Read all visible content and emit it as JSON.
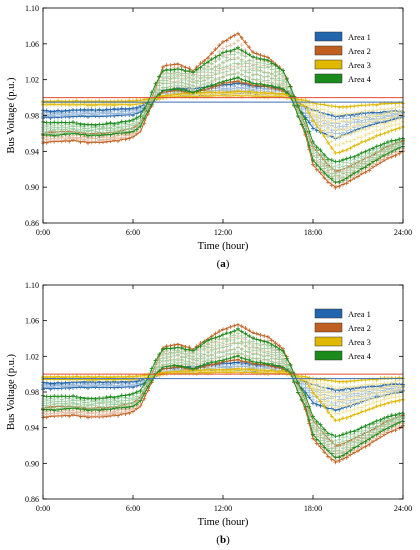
{
  "chart_data": [
    {
      "type": "line",
      "caption_letter": "a",
      "xlabel": "Time (hour)",
      "ylabel": "Bus Voltage (p.u.)",
      "xlim": [
        0,
        24
      ],
      "ylim": [
        0.86,
        1.1
      ],
      "x_ticks": [
        "0:00",
        "6:00",
        "12:00",
        "18:00",
        "24:00"
      ],
      "y_ticks": [
        "0.86",
        "0.90",
        "0.94",
        "0.98",
        "1.02",
        "1.06",
        "1.10"
      ],
      "legend_placement": "top-right",
      "reference_lines": [
        1.0,
        0.995
      ],
      "series": [
        {
          "name": "Area 1",
          "color": "#2166ac",
          "x": [
            0,
            1,
            2,
            3,
            4,
            5,
            6,
            6.5,
            7,
            7.5,
            8,
            9,
            10,
            11,
            12,
            13,
            14,
            15,
            16,
            16.5,
            17,
            17.5,
            18,
            19,
            19.5,
            20,
            21,
            22,
            23,
            24
          ],
          "upper": [
            0.985,
            0.985,
            0.986,
            0.986,
            0.986,
            0.987,
            0.988,
            0.99,
            0.995,
            1.0,
            1.008,
            1.01,
            1.01,
            1.012,
            1.014,
            1.016,
            1.013,
            1.012,
            1.01,
            1.005,
            0.995,
            0.99,
            0.986,
            0.981,
            0.979,
            0.98,
            0.982,
            0.983,
            0.984,
            0.985
          ],
          "lower": [
            0.978,
            0.978,
            0.979,
            0.979,
            0.979,
            0.98,
            0.981,
            0.984,
            0.99,
            0.997,
            1.001,
            1.002,
            1.002,
            1.003,
            1.004,
            1.005,
            1.004,
            1.003,
            1.002,
            0.999,
            0.987,
            0.978,
            0.966,
            0.958,
            0.955,
            0.958,
            0.965,
            0.97,
            0.974,
            0.978
          ]
        },
        {
          "name": "Area 2",
          "color": "#c06020",
          "x": [
            0,
            1,
            2,
            3,
            4,
            5,
            6,
            6.5,
            7,
            7.5,
            8,
            9,
            10,
            11,
            12,
            13,
            14,
            15,
            16,
            16.5,
            17,
            17.5,
            18,
            19,
            19.5,
            20,
            21,
            22,
            23,
            24
          ],
          "upper": [
            0.96,
            0.962,
            0.962,
            0.96,
            0.96,
            0.962,
            0.966,
            0.972,
            0.99,
            1.01,
            1.035,
            1.038,
            1.03,
            1.045,
            1.062,
            1.072,
            1.05,
            1.045,
            1.03,
            1.012,
            0.99,
            0.968,
            0.945,
            0.925,
            0.918,
            0.92,
            0.928,
            0.936,
            0.946,
            0.952
          ],
          "lower": [
            0.95,
            0.951,
            0.952,
            0.95,
            0.95,
            0.952,
            0.956,
            0.962,
            0.982,
            1.0,
            1.006,
            1.008,
            1.005,
            1.01,
            1.016,
            1.018,
            1.014,
            1.012,
            1.008,
            1.002,
            0.98,
            0.958,
            0.925,
            0.906,
            0.9,
            0.903,
            0.912,
            0.922,
            0.932,
            0.94
          ]
        },
        {
          "name": "Area 3",
          "color": "#e0b800",
          "x": [
            0,
            1,
            2,
            3,
            4,
            5,
            6,
            6.5,
            7,
            7.5,
            8,
            9,
            10,
            11,
            12,
            13,
            14,
            15,
            16,
            16.5,
            17,
            17.5,
            18,
            19,
            19.5,
            20,
            21,
            22,
            23,
            24
          ],
          "upper": [
            0.996,
            0.996,
            0.996,
            0.996,
            0.996,
            0.996,
            0.996,
            0.997,
            0.998,
            1.0,
            1.002,
            1.004,
            1.005,
            1.006,
            1.006,
            1.007,
            1.006,
            1.005,
            1.004,
            1.001,
            0.998,
            0.997,
            0.994,
            0.991,
            0.99,
            0.99,
            0.991,
            0.992,
            0.993,
            0.994
          ],
          "lower": [
            0.992,
            0.992,
            0.992,
            0.992,
            0.992,
            0.992,
            0.992,
            0.993,
            0.995,
            0.998,
            1.0,
            1.001,
            1.001,
            1.002,
            1.002,
            1.002,
            1.002,
            1.001,
            1.001,
            0.999,
            0.994,
            0.99,
            0.975,
            0.95,
            0.938,
            0.94,
            0.948,
            0.955,
            0.962,
            0.968
          ]
        },
        {
          "name": "Area 4",
          "color": "#1a8a1a",
          "x": [
            0,
            1,
            2,
            3,
            4,
            5,
            6,
            6.5,
            7,
            7.5,
            8,
            9,
            10,
            11,
            12,
            13,
            14,
            15,
            16,
            16.5,
            17,
            17.5,
            18,
            19,
            19.5,
            20,
            21,
            22,
            23,
            24
          ],
          "upper": [
            0.972,
            0.972,
            0.972,
            0.97,
            0.97,
            0.972,
            0.975,
            0.98,
            0.995,
            1.015,
            1.03,
            1.032,
            1.028,
            1.04,
            1.05,
            1.055,
            1.045,
            1.042,
            1.03,
            1.012,
            0.99,
            0.975,
            0.95,
            0.932,
            0.928,
            0.93,
            0.936,
            0.944,
            0.95,
            0.955
          ],
          "lower": [
            0.958,
            0.958,
            0.96,
            0.958,
            0.958,
            0.96,
            0.962,
            0.968,
            0.985,
            1.0,
            1.008,
            1.01,
            1.006,
            1.012,
            1.018,
            1.022,
            1.016,
            1.014,
            1.01,
            1.002,
            0.98,
            0.962,
            0.93,
            0.912,
            0.905,
            0.908,
            0.918,
            0.928,
            0.938,
            0.946
          ]
        }
      ]
    },
    {
      "type": "line",
      "caption_letter": "b",
      "xlabel": "Time (hour)",
      "ylabel": "Bus Voltage (p.u.)",
      "xlim": [
        0,
        24
      ],
      "ylim": [
        0.86,
        1.1
      ],
      "x_ticks": [
        "0:00",
        "6:00",
        "12:00",
        "18:00",
        "24:00"
      ],
      "y_ticks": [
        "0.86",
        "0.90",
        "0.94",
        "0.98",
        "1.02",
        "1.06",
        "1.10"
      ],
      "legend_placement": "top-right",
      "reference_lines": [
        1.0,
        0.995
      ],
      "series": [
        {
          "name": "Area 1",
          "color": "#2166ac",
          "x": [
            0,
            1,
            2,
            3,
            4,
            5,
            6,
            6.5,
            7,
            7.5,
            8,
            9,
            10,
            11,
            12,
            13,
            14,
            15,
            16,
            16.5,
            17,
            17.5,
            18,
            19,
            19.5,
            20,
            21,
            22,
            23,
            24
          ],
          "upper": [
            0.99,
            0.99,
            0.991,
            0.991,
            0.991,
            0.991,
            0.992,
            0.993,
            0.996,
            1.0,
            1.006,
            1.008,
            1.008,
            1.01,
            1.012,
            1.013,
            1.011,
            1.01,
            1.008,
            1.004,
            0.996,
            0.992,
            0.988,
            0.984,
            0.982,
            0.983,
            0.985,
            0.986,
            0.988,
            0.989
          ],
          "lower": [
            0.984,
            0.984,
            0.985,
            0.985,
            0.985,
            0.985,
            0.986,
            0.988,
            0.992,
            0.997,
            1.001,
            1.002,
            1.002,
            1.003,
            1.004,
            1.004,
            1.003,
            1.003,
            1.002,
            0.999,
            0.988,
            0.98,
            0.968,
            0.962,
            0.96,
            0.962,
            0.968,
            0.973,
            0.977,
            0.98
          ]
        },
        {
          "name": "Area 2",
          "color": "#c06020",
          "x": [
            0,
            1,
            2,
            3,
            4,
            5,
            6,
            6.5,
            7,
            7.5,
            8,
            9,
            10,
            11,
            12,
            13,
            14,
            15,
            16,
            16.5,
            17,
            17.5,
            18,
            19,
            19.5,
            20,
            21,
            22,
            23,
            24
          ],
          "upper": [
            0.962,
            0.964,
            0.964,
            0.962,
            0.962,
            0.964,
            0.968,
            0.974,
            0.99,
            1.01,
            1.03,
            1.034,
            1.028,
            1.04,
            1.05,
            1.056,
            1.046,
            1.042,
            1.028,
            1.01,
            0.99,
            0.97,
            0.948,
            0.928,
            0.92,
            0.922,
            0.93,
            0.938,
            0.948,
            0.954
          ],
          "lower": [
            0.952,
            0.953,
            0.954,
            0.952,
            0.952,
            0.954,
            0.958,
            0.964,
            0.982,
            1.0,
            1.006,
            1.008,
            1.005,
            1.01,
            1.014,
            1.016,
            1.012,
            1.01,
            1.006,
            1.002,
            0.98,
            0.96,
            0.928,
            0.908,
            0.902,
            0.905,
            0.914,
            0.924,
            0.934,
            0.942
          ]
        },
        {
          "name": "Area 3",
          "color": "#e0b800",
          "x": [
            0,
            1,
            2,
            3,
            4,
            5,
            6,
            6.5,
            7,
            7.5,
            8,
            9,
            10,
            11,
            12,
            13,
            14,
            15,
            16,
            16.5,
            17,
            17.5,
            18,
            19,
            19.5,
            20,
            21,
            22,
            23,
            24
          ],
          "upper": [
            0.997,
            0.997,
            0.997,
            0.997,
            0.997,
            0.997,
            0.997,
            0.998,
            0.999,
            1.0,
            1.002,
            1.003,
            1.004,
            1.005,
            1.005,
            1.006,
            1.005,
            1.004,
            1.003,
            1.001,
            0.998,
            0.997,
            0.995,
            0.993,
            0.992,
            0.992,
            0.993,
            0.994,
            0.995,
            0.996
          ],
          "lower": [
            0.994,
            0.994,
            0.994,
            0.994,
            0.994,
            0.994,
            0.994,
            0.995,
            0.996,
            0.998,
            1.0,
            1.001,
            1.001,
            1.002,
            1.002,
            1.002,
            1.002,
            1.001,
            1.001,
            0.999,
            0.995,
            0.992,
            0.98,
            0.958,
            0.948,
            0.95,
            0.956,
            0.962,
            0.968,
            0.972
          ]
        },
        {
          "name": "Area 4",
          "color": "#1a8a1a",
          "x": [
            0,
            1,
            2,
            3,
            4,
            5,
            6,
            6.5,
            7,
            7.5,
            8,
            9,
            10,
            11,
            12,
            13,
            14,
            15,
            16,
            16.5,
            17,
            17.5,
            18,
            19,
            19.5,
            20,
            21,
            22,
            23,
            24
          ],
          "upper": [
            0.975,
            0.975,
            0.975,
            0.973,
            0.973,
            0.975,
            0.978,
            0.982,
            0.996,
            1.015,
            1.028,
            1.03,
            1.026,
            1.038,
            1.044,
            1.05,
            1.04,
            1.036,
            1.026,
            1.01,
            0.99,
            0.976,
            0.952,
            0.934,
            0.93,
            0.932,
            0.938,
            0.946,
            0.952,
            0.957
          ],
          "lower": [
            0.96,
            0.96,
            0.962,
            0.96,
            0.96,
            0.962,
            0.964,
            0.97,
            0.986,
            1.0,
            1.008,
            1.01,
            1.006,
            1.012,
            1.016,
            1.02,
            1.014,
            1.012,
            1.008,
            1.002,
            0.98,
            0.964,
            0.932,
            0.914,
            0.906,
            0.909,
            0.92,
            0.93,
            0.94,
            0.948
          ]
        }
      ]
    }
  ]
}
